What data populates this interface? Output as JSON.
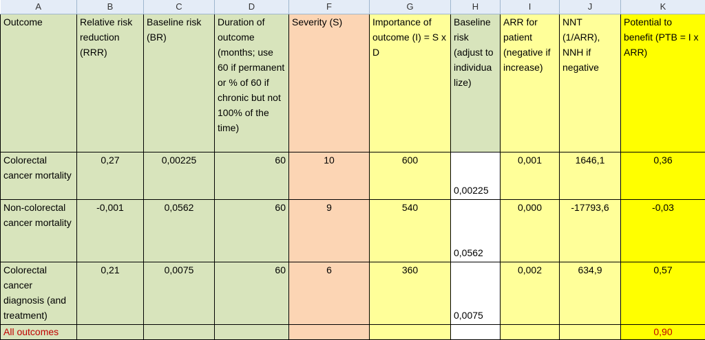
{
  "column_letters": [
    "A",
    "B",
    "C",
    "D",
    "F",
    "G",
    "H",
    "I",
    "J",
    "K"
  ],
  "headers": {
    "outcome": "Outcome",
    "rrr": "Relative risk reduction (RRR)",
    "br": "Baseline risk (BR)",
    "duration": "Duration of outcome (months; use 60 if permanent or % of 60 if chronic but not 100% of the time)",
    "severity": "Severity (S)",
    "importance": "Importance of outcome (I) = S x D",
    "baseline_adj": "Baseline risk (adjust to individua lize)",
    "arr": "ARR for patient (negative if increase)",
    "nnt": "NNT (1/ARR), NNH if negative",
    "ptb": "Potential to benefit (PTB = I x ARR)"
  },
  "rows": [
    {
      "outcome": "Colorectal cancer mortality",
      "rrr": "0,27",
      "br": "0,00225",
      "duration": "60",
      "severity": "10",
      "importance": "600",
      "baseline_adj": "0,00225",
      "arr": "0,001",
      "nnt": "1646,1",
      "ptb": "0,36"
    },
    {
      "outcome": "Non-colorectal cancer mortality",
      "rrr": "-0,001",
      "br": "0,0562",
      "duration": "60",
      "severity": "9",
      "importance": "540",
      "baseline_adj": "0,0562",
      "arr": "0,000",
      "nnt": "-17793,6",
      "ptb": "-0,03"
    },
    {
      "outcome": "Colorectal cancer diagnosis (and treatment)",
      "rrr": "0,21",
      "br": "0,0075",
      "duration": "60",
      "severity": "6",
      "importance": "360",
      "baseline_adj": "0,0075",
      "arr": "0,002",
      "nnt": "634,9",
      "ptb": "0,57"
    }
  ],
  "total": {
    "label": "All outcomes",
    "ptb": "0,90"
  }
}
